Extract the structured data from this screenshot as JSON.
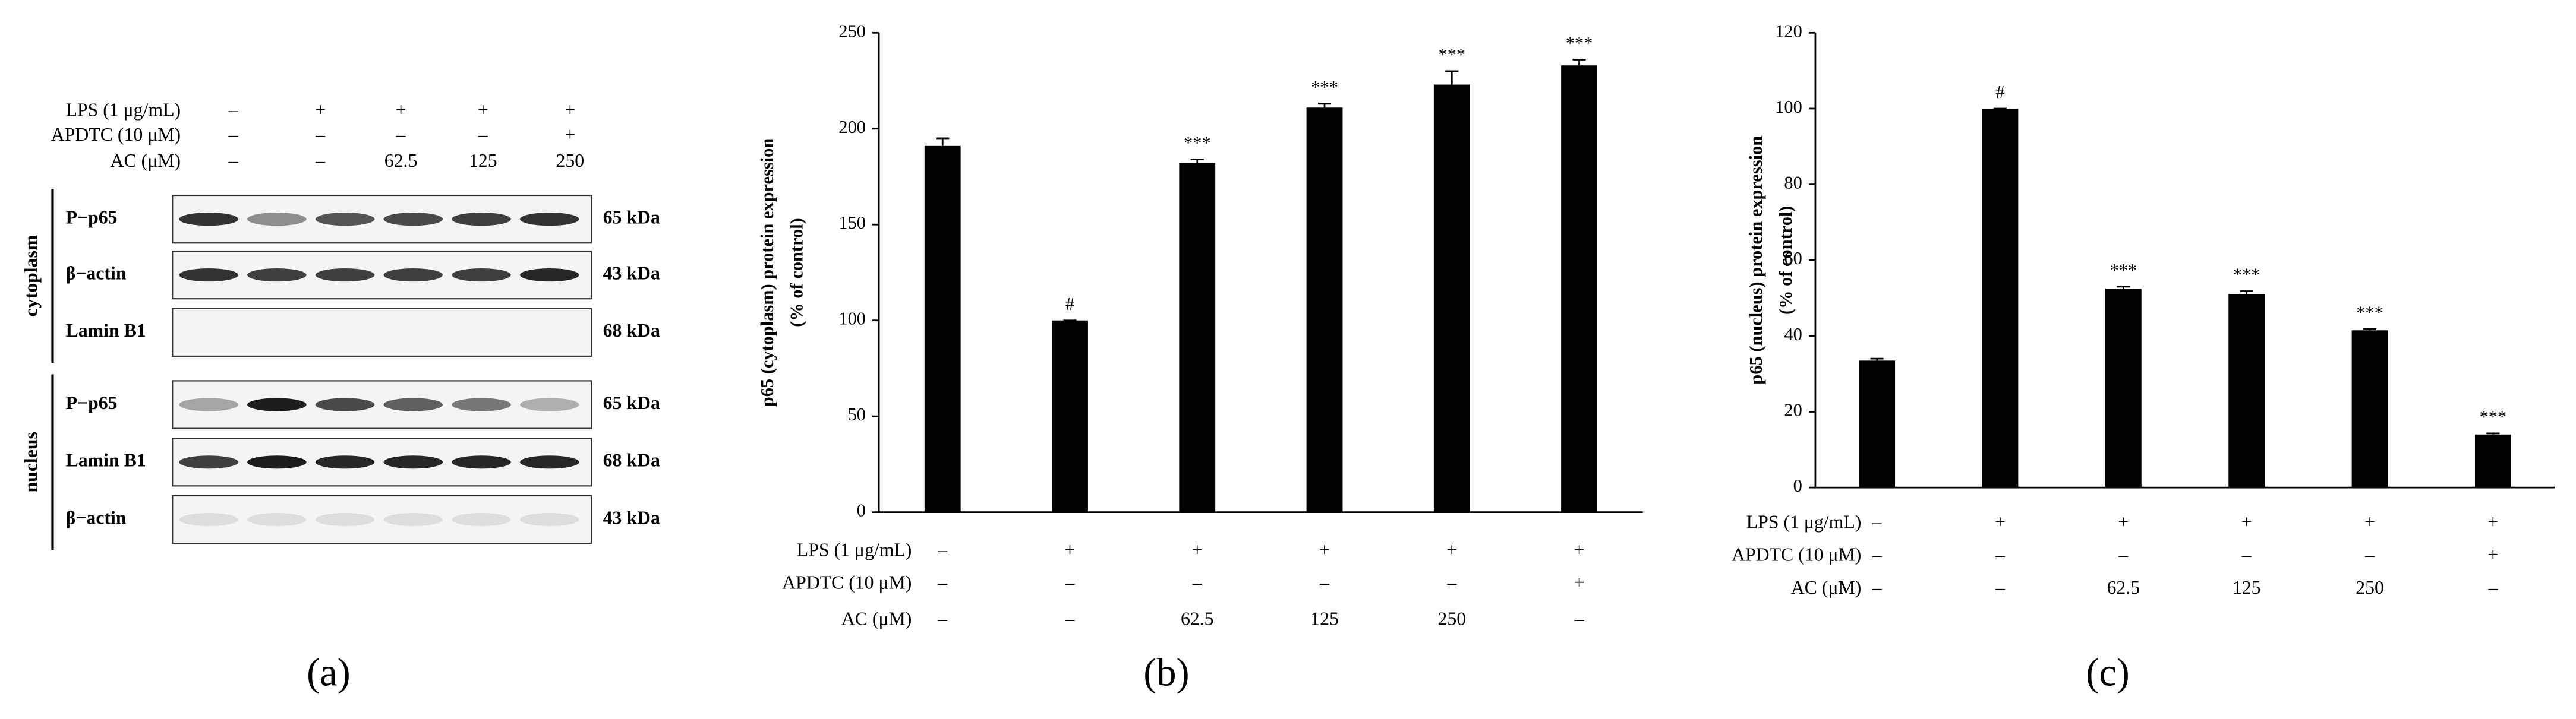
{
  "panel_labels": [
    "(a)",
    "(b)",
    "(c)"
  ],
  "blot": {
    "conditions": [
      {
        "label": "LPS (1 μg/mL)",
        "values": [
          "–",
          "+",
          "+",
          "+",
          "+"
        ]
      },
      {
        "label": "APDTC (10 μM)",
        "values": [
          "–",
          "–",
          "–",
          "–",
          "+"
        ]
      },
      {
        "label": "AC (μM)",
        "values": [
          "–",
          "–",
          "62.5",
          "125",
          "250"
        ]
      }
    ],
    "fractions": [
      {
        "name": "cytoplasm",
        "rows": [
          {
            "protein": "P−p65",
            "size": "65 kDa"
          },
          {
            "protein": "β−actin",
            "size": "43 kDa"
          },
          {
            "protein": "Lamin B1",
            "size": "68 kDa"
          }
        ]
      },
      {
        "name": "nucleus",
        "rows": [
          {
            "protein": "P−p65",
            "size": "65 kDa"
          },
          {
            "protein": "Lamin B1",
            "size": "68 kDa"
          },
          {
            "protein": "β−actin",
            "size": "43 kDa"
          }
        ]
      }
    ]
  },
  "chart_data": [
    {
      "type": "bar",
      "ylabel": [
        "p65 (cytoplasm) protein expression",
        "(% of control)"
      ],
      "values": [
        191,
        100,
        182,
        211,
        223,
        233
      ],
      "errors": [
        4,
        0,
        2,
        2,
        7,
        3
      ],
      "annotations": [
        null,
        "#",
        "***",
        "***",
        "***",
        "***"
      ],
      "color": "#000000",
      "ylim": [
        0,
        250
      ],
      "yticks": [
        0,
        50,
        100,
        150,
        200,
        250
      ],
      "conditions": [
        {
          "label": "LPS (1 μg/mL)",
          "values": [
            "–",
            "+",
            "+",
            "+",
            "+",
            "+"
          ]
        },
        {
          "label": "APDTC (10 μM)",
          "values": [
            "–",
            "–",
            "–",
            "–",
            "–",
            "+"
          ]
        },
        {
          "label": "AC (μM)",
          "values": [
            "–",
            "–",
            "62.5",
            "125",
            "250",
            "–"
          ]
        }
      ]
    },
    {
      "type": "bar",
      "ylabel": [
        "p65 (nucleus) protein expression",
        "(% of control)"
      ],
      "values": [
        33.5,
        100,
        52.5,
        51,
        41.5,
        14
      ],
      "errors": [
        0.5,
        0,
        0.5,
        0.8,
        0.3,
        0.3
      ],
      "annotations": [
        null,
        "#",
        "***",
        "***",
        "***",
        "***"
      ],
      "color": "#000000",
      "ylim": [
        0,
        120
      ],
      "yticks": [
        0,
        20,
        40,
        60,
        80,
        100,
        120
      ],
      "conditions": [
        {
          "label": "LPS (1 μg/mL)",
          "values": [
            "–",
            "+",
            "+",
            "+",
            "+",
            "+"
          ]
        },
        {
          "label": "APDTC (10 μM)",
          "values": [
            "–",
            "–",
            "–",
            "–",
            "–",
            "+"
          ]
        },
        {
          "label": "AC (μM)",
          "values": [
            "–",
            "–",
            "62.5",
            "125",
            "250",
            "–"
          ]
        }
      ]
    }
  ]
}
